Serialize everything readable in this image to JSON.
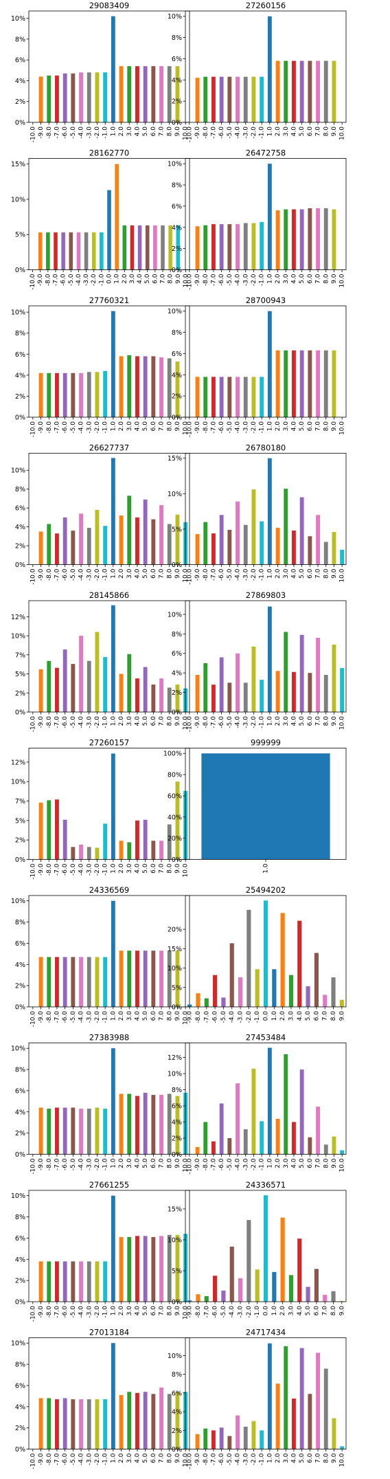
{
  "colors": [
    "#1f77b4",
    "#ff7f0e",
    "#2ca02c",
    "#d62728",
    "#9467bd",
    "#8c564b",
    "#e377c2",
    "#7f7f7f",
    "#bcbd22",
    "#17becf"
  ],
  "chart_data": [
    {
      "type": "bar",
      "title": "29083409",
      "categories": [
        "-10.0",
        "-9.0",
        "-8.0",
        "-7.0",
        "-6.0",
        "-5.0",
        "-4.0",
        "-3.0",
        "-2.0",
        "-1.0",
        "1.0",
        "2.0",
        "3.0",
        "4.0",
        "5.0",
        "6.0",
        "7.0",
        "8.0",
        "9.0",
        "10.0"
      ],
      "values": [
        0,
        4.4,
        4.5,
        4.5,
        4.7,
        4.7,
        4.8,
        4.8,
        4.8,
        4.8,
        10.2,
        5.4,
        5.4,
        5.4,
        5.4,
        5.4,
        5.4,
        5.4,
        5.4,
        0
      ],
      "ylim": [
        0,
        10.7
      ],
      "yticks": [
        0,
        2,
        4,
        6,
        8,
        10
      ],
      "ytick_labels": [
        "0%",
        "2%",
        "4%",
        "6%",
        "8%",
        "10%"
      ]
    },
    {
      "type": "bar",
      "title": "27260156",
      "categories": [
        "-10.0",
        "-9.0",
        "-8.0",
        "-7.0",
        "-6.0",
        "-5.0",
        "-4.0",
        "-3.0",
        "-2.0",
        "-1.0",
        "1.0",
        "2.0",
        "3.0",
        "4.0",
        "5.0",
        "6.0",
        "7.0",
        "8.0",
        "9.0",
        "10.0"
      ],
      "values": [
        0,
        4.2,
        4.3,
        4.3,
        4.3,
        4.3,
        4.3,
        4.3,
        4.3,
        4.3,
        10.0,
        5.8,
        5.8,
        5.8,
        5.8,
        5.8,
        5.8,
        5.8,
        5.8,
        0
      ],
      "ylim": [
        0,
        10.5
      ],
      "yticks": [
        0,
        2,
        4,
        6,
        8,
        10
      ],
      "ytick_labels": [
        "0%",
        "2%",
        "4%",
        "6%",
        "8%",
        "10%"
      ]
    },
    {
      "type": "bar",
      "title": "28162770",
      "categories": [
        "-10.0",
        "-9.0",
        "-8.0",
        "-7.0",
        "-6.0",
        "-5.0",
        "-4.0",
        "-3.0",
        "-2.0",
        "-1.0",
        "0.0",
        "1.0",
        "2.0",
        "3.0",
        "4.0",
        "5.0",
        "6.0",
        "7.0",
        "8.0",
        "9.0",
        "10.0"
      ],
      "values": [
        0,
        5.3,
        5.3,
        5.3,
        5.3,
        5.3,
        5.3,
        5.3,
        5.3,
        5.3,
        11.3,
        15.0,
        6.3,
        6.3,
        6.3,
        6.3,
        6.3,
        6.3,
        6.3,
        6.3,
        0
      ],
      "ylim": [
        0,
        15.8
      ],
      "yticks": [
        0,
        5,
        10,
        15
      ],
      "ytick_labels": [
        "0%",
        "5%",
        "10%",
        "15%"
      ]
    },
    {
      "type": "bar",
      "title": "26472758",
      "categories": [
        "-10.0",
        "-9.0",
        "-8.0",
        "-7.0",
        "-6.0",
        "-5.0",
        "-4.0",
        "-3.0",
        "-2.0",
        "-1.0",
        "1.0",
        "2.0",
        "3.0",
        "4.0",
        "5.0",
        "6.0",
        "7.0",
        "8.0",
        "9.0",
        "10.0"
      ],
      "values": [
        0,
        4.1,
        4.2,
        4.3,
        4.3,
        4.3,
        4.3,
        4.4,
        4.4,
        4.5,
        10.0,
        5.6,
        5.7,
        5.7,
        5.7,
        5.8,
        5.8,
        5.8,
        5.7,
        0
      ],
      "ylim": [
        0,
        10.5
      ],
      "yticks": [
        0,
        2,
        4,
        6,
        8,
        10
      ],
      "ytick_labels": [
        "0%",
        "2%",
        "4%",
        "6%",
        "8%",
        "10%"
      ]
    },
    {
      "type": "bar",
      "title": "27760321",
      "categories": [
        "-10.0",
        "-9.0",
        "-8.0",
        "-7.0",
        "-6.0",
        "-5.0",
        "-4.0",
        "-3.0",
        "-2.0",
        "-1.0",
        "1.0",
        "2.0",
        "3.0",
        "4.0",
        "5.0",
        "6.0",
        "7.0",
        "8.0",
        "9.0",
        "10.0"
      ],
      "values": [
        0,
        4.2,
        4.2,
        4.2,
        4.2,
        4.2,
        4.2,
        4.3,
        4.3,
        4.4,
        10.1,
        5.8,
        5.9,
        5.8,
        5.8,
        5.8,
        5.7,
        5.6,
        5.3,
        0
      ],
      "ylim": [
        0,
        10.6
      ],
      "yticks": [
        0,
        2,
        4,
        6,
        8,
        10
      ],
      "ytick_labels": [
        "0%",
        "2%",
        "4%",
        "6%",
        "8%",
        "10%"
      ]
    },
    {
      "type": "bar",
      "title": "28700943",
      "categories": [
        "-10.0",
        "-9.0",
        "-8.0",
        "-7.0",
        "-6.0",
        "-5.0",
        "-4.0",
        "-3.0",
        "-2.0",
        "-1.0",
        "1.0",
        "2.0",
        "3.0",
        "4.0",
        "5.0",
        "6.0",
        "7.0",
        "8.0",
        "9.0",
        "10.0"
      ],
      "values": [
        0,
        3.8,
        3.8,
        3.8,
        3.8,
        3.8,
        3.8,
        3.8,
        3.8,
        3.8,
        10.0,
        6.3,
        6.3,
        6.3,
        6.3,
        6.3,
        6.3,
        6.3,
        6.3,
        0
      ],
      "ylim": [
        0,
        10.5
      ],
      "yticks": [
        0,
        2,
        4,
        6,
        8,
        10
      ],
      "ytick_labels": [
        "0%",
        "2%",
        "4%",
        "6%",
        "8%",
        "10%"
      ]
    },
    {
      "type": "bar",
      "title": "26627737",
      "categories": [
        "-10.0",
        "-9.0",
        "-8.0",
        "-7.0",
        "-6.0",
        "-5.0",
        "-4.0",
        "-3.0",
        "-2.0",
        "-1.0",
        "1.0",
        "2.0",
        "3.0",
        "4.0",
        "5.0",
        "6.0",
        "7.0",
        "8.0",
        "9.0",
        "10.0"
      ],
      "values": [
        0,
        3.5,
        4.3,
        3.3,
        5.0,
        3.6,
        5.4,
        3.9,
        5.8,
        4.1,
        11.3,
        5.2,
        7.3,
        5.0,
        6.9,
        4.8,
        6.3,
        4.3,
        5.3,
        4.5
      ],
      "ylim": [
        0,
        11.8
      ],
      "yticks": [
        0,
        2,
        4,
        6,
        8,
        10
      ],
      "ytick_labels": [
        "0%",
        "2%",
        "4%",
        "6%",
        "8%",
        "10%"
      ]
    },
    {
      "type": "bar",
      "title": "26780180",
      "categories": [
        "-10.0",
        "-9.0",
        "-8.0",
        "-7.0",
        "-6.0",
        "-5.0",
        "-4.0",
        "-3.0",
        "-2.0",
        "-1.0",
        "1.0",
        "2.0",
        "3.0",
        "4.0",
        "5.0",
        "6.0",
        "7.0",
        "8.0",
        "9.0",
        "10.0"
      ],
      "values": [
        0,
        4.3,
        6.0,
        4.4,
        7.0,
        4.9,
        8.9,
        5.6,
        10.6,
        6.1,
        15.0,
        5.2,
        10.7,
        4.8,
        9.5,
        4.0,
        7.0,
        3.2,
        4.6,
        2.1
      ],
      "ylim": [
        0,
        15.7
      ],
      "yticks": [
        0,
        5,
        10,
        15
      ],
      "ytick_labels": [
        "0%",
        "5%",
        "10%",
        "15%"
      ]
    },
    {
      "type": "bar",
      "title": "28145866",
      "categories": [
        "-10.0",
        "-9.0",
        "-8.0",
        "-7.0",
        "-6.0",
        "-5.0",
        "-4.0",
        "-3.0",
        "-2.0",
        "-1.0",
        "1.0",
        "2.0",
        "3.0",
        "4.0",
        "5.0",
        "6.0",
        "7.0",
        "8.0",
        "9.0",
        "10.0"
      ],
      "values": [
        0,
        5.6,
        6.7,
        5.8,
        8.2,
        6.3,
        10.0,
        6.7,
        10.5,
        7.2,
        14.0,
        5.0,
        7.6,
        4.4,
        5.9,
        3.6,
        4.4,
        3.2,
        3.6,
        3.1
      ],
      "ylim": [
        0,
        14.6
      ],
      "yticks": [
        0,
        2.5,
        5,
        7.5,
        10,
        12.5
      ],
      "ytick_labels": [
        "0%",
        "2%",
        "5%",
        "7%",
        "10%",
        "12%"
      ]
    },
    {
      "type": "bar",
      "title": "27869803",
      "categories": [
        "-10.0",
        "-9.0",
        "-8.0",
        "-7.0",
        "-6.0",
        "-5.0",
        "-4.0",
        "-3.0",
        "-2.0",
        "-1.0",
        "1.0",
        "2.0",
        "3.0",
        "4.0",
        "5.0",
        "6.0",
        "7.0",
        "8.0",
        "9.0",
        "10.0"
      ],
      "values": [
        0,
        3.8,
        5.0,
        2.8,
        5.6,
        3.0,
        6.0,
        3.0,
        6.7,
        3.3,
        10.8,
        4.2,
        8.2,
        4.1,
        7.9,
        4.0,
        7.6,
        3.8,
        6.9,
        4.5
      ],
      "ylim": [
        0,
        11.4
      ],
      "yticks": [
        0,
        2,
        4,
        6,
        8,
        10
      ],
      "ytick_labels": [
        "0%",
        "2%",
        "4%",
        "6%",
        "8%",
        "10%"
      ]
    },
    {
      "type": "bar",
      "title": "27260157",
      "categories": [
        "-10.0",
        "-9.0",
        "-8.0",
        "-7.0",
        "-6.0",
        "-5.0",
        "-4.0",
        "-3.0",
        "-2.0",
        "-1.0",
        "1.0",
        "2.0",
        "3.0",
        "4.0",
        "5.0",
        "6.0",
        "7.0",
        "8.0",
        "9.0",
        "10.0"
      ],
      "values": [
        0,
        7.3,
        7.6,
        7.7,
        5.1,
        1.6,
        1.9,
        1.6,
        1.5,
        4.6,
        13.6,
        2.4,
        2.2,
        5.0,
        5.1,
        2.4,
        2.4,
        4.5,
        10.0,
        8.8
      ],
      "ylim": [
        0,
        14.3
      ],
      "yticks": [
        0,
        2.5,
        5,
        7.5,
        10,
        12.5
      ],
      "ytick_labels": [
        "0%",
        "2%",
        "5%",
        "7%",
        "10%",
        "12%"
      ]
    },
    {
      "type": "bar",
      "title": "999999",
      "categories": [
        "1.0"
      ],
      "values": [
        100
      ],
      "ylim": [
        0,
        105
      ],
      "yticks": [
        0,
        20,
        40,
        60,
        80,
        100
      ],
      "ytick_labels": [
        "0%",
        "20%",
        "40%",
        "60%",
        "80%",
        "100%"
      ]
    },
    {
      "type": "bar",
      "title": "24336569",
      "categories": [
        "-10.0",
        "-9.0",
        "-8.0",
        "-7.0",
        "-6.0",
        "-5.0",
        "-4.0",
        "-3.0",
        "-2.0",
        "-1.0",
        "1.0",
        "2.0",
        "3.0",
        "4.0",
        "5.0",
        "6.0",
        "7.0",
        "8.0",
        "9.0",
        "10.0"
      ],
      "values": [
        0,
        4.7,
        4.7,
        4.7,
        4.7,
        4.7,
        4.7,
        4.7,
        4.7,
        4.7,
        10.0,
        5.3,
        5.3,
        5.3,
        5.3,
        5.3,
        5.3,
        5.3,
        5.3,
        0
      ],
      "ylim": [
        0,
        10.5
      ],
      "yticks": [
        0,
        2,
        4,
        6,
        8,
        10
      ],
      "ytick_labels": [
        "0%",
        "2%",
        "4%",
        "6%",
        "8%",
        "10%"
      ]
    },
    {
      "type": "bar",
      "title": "25494202",
      "categories": [
        "-9.0",
        "-8.0",
        "-7.0",
        "-6.0",
        "-5.0",
        "-4.0",
        "-3.0",
        "-2.0",
        "-1.0",
        "0.0",
        "1.0",
        "2.0",
        "3.0",
        "4.0",
        "5.0",
        "6.0",
        "7.0",
        "8.0",
        "9.0"
      ],
      "values": [
        0.6,
        3.5,
        2.2,
        8.2,
        2.4,
        16.4,
        7.6,
        25.0,
        9.7,
        27.4,
        9.7,
        24.2,
        8.2,
        22.2,
        5.3,
        13.9,
        3.1,
        7.6,
        1.8
      ],
      "ylim": [
        0,
        28.7
      ],
      "yticks": [
        0,
        5,
        10,
        15,
        20
      ],
      "ytick_labels": [
        "0%",
        "5%",
        "10%",
        "15%",
        "20%"
      ]
    },
    {
      "type": "bar",
      "title": "27383988",
      "categories": [
        "-10.0",
        "-9.0",
        "-8.0",
        "-7.0",
        "-6.0",
        "-5.0",
        "-4.0",
        "-3.0",
        "-2.0",
        "-1.0",
        "1.0",
        "2.0",
        "3.0",
        "4.0",
        "5.0",
        "6.0",
        "7.0",
        "8.0",
        "9.0",
        "10.0"
      ],
      "values": [
        0,
        4.4,
        4.3,
        4.4,
        4.4,
        4.4,
        4.3,
        4.3,
        4.4,
        4.3,
        10.0,
        5.7,
        5.7,
        5.5,
        5.8,
        5.6,
        5.6,
        5.7,
        5.5,
        5.8
      ],
      "ylim": [
        0,
        10.5
      ],
      "yticks": [
        0,
        2,
        4,
        6,
        8,
        10
      ],
      "ytick_labels": [
        "0%",
        "2%",
        "4%",
        "6%",
        "8%",
        "10%"
      ]
    },
    {
      "type": "bar",
      "title": "27453484",
      "categories": [
        "-10.0",
        "-9.0",
        "-8.0",
        "-7.0",
        "-6.0",
        "-5.0",
        "-4.0",
        "-3.0",
        "-2.0",
        "-1.0",
        "1.0",
        "2.0",
        "3.0",
        "4.0",
        "5.0",
        "6.0",
        "7.0",
        "8.0",
        "9.0",
        "10.0"
      ],
      "values": [
        0,
        0.9,
        4.0,
        1.6,
        6.3,
        2.0,
        8.8,
        3.1,
        10.6,
        4.1,
        13.2,
        4.4,
        12.4,
        4.0,
        10.5,
        2.1,
        5.9,
        1.2,
        2.2,
        0.5
      ],
      "ylim": [
        0,
        13.8
      ],
      "yticks": [
        0,
        2,
        4,
        6,
        8,
        10,
        12
      ],
      "ytick_labels": [
        "0%",
        "2%",
        "4%",
        "6%",
        "8%",
        "10%",
        "12%"
      ]
    },
    {
      "type": "bar",
      "title": "27661255",
      "categories": [
        "-10.0",
        "-9.0",
        "-8.0",
        "-7.0",
        "-6.0",
        "-5.0",
        "-4.0",
        "-3.0",
        "-2.0",
        "-1.0",
        "1.0",
        "2.0",
        "3.0",
        "4.0",
        "5.0",
        "6.0",
        "7.0",
        "8.0",
        "9.0",
        "10.0"
      ],
      "values": [
        0,
        3.8,
        3.8,
        3.8,
        3.8,
        3.8,
        3.8,
        3.8,
        3.8,
        3.8,
        10.0,
        6.1,
        6.1,
        6.2,
        6.2,
        6.1,
        6.2,
        6.3,
        6.3,
        6.4
      ],
      "ylim": [
        0,
        10.5
      ],
      "yticks": [
        0,
        2,
        4,
        6,
        8,
        10
      ],
      "ytick_labels": [
        "0%",
        "2%",
        "4%",
        "6%",
        "8%",
        "10%"
      ]
    },
    {
      "type": "bar",
      "title": "24336571",
      "categories": [
        "-9.0",
        "-8.0",
        "-7.0",
        "-6.0",
        "-5.0",
        "-4.0",
        "-3.0",
        "-2.0",
        "-1.0",
        "0.0",
        "1.0",
        "2.0",
        "3.0",
        "4.0",
        "5.0",
        "6.0",
        "7.0",
        "8.0",
        "9.0"
      ],
      "values": [
        0.2,
        1.2,
        0.9,
        4.2,
        1.8,
        8.9,
        3.8,
        13.2,
        5.2,
        17.2,
        4.8,
        13.6,
        4.3,
        10.2,
        2.4,
        5.3,
        1.1,
        1.7,
        0.1
      ],
      "ylim": [
        0,
        18.0
      ],
      "yticks": [
        0,
        5,
        10,
        15
      ],
      "ytick_labels": [
        "0%",
        "5%",
        "10%",
        "15%"
      ]
    },
    {
      "type": "bar",
      "title": "27013184",
      "categories": [
        "-10.0",
        "-9.0",
        "-8.0",
        "-7.0",
        "-6.0",
        "-5.0",
        "-4.0",
        "-3.0",
        "-2.0",
        "-1.0",
        "1.0",
        "2.0",
        "3.0",
        "4.0",
        "5.0",
        "6.0",
        "7.0",
        "8.0",
        "9.0",
        "10.0"
      ],
      "values": [
        0,
        4.8,
        4.8,
        4.7,
        4.8,
        4.7,
        4.7,
        4.7,
        4.7,
        4.7,
        10.0,
        5.1,
        5.4,
        5.3,
        5.4,
        5.2,
        5.8,
        5.2,
        5.4,
        5.4
      ],
      "ylim": [
        0,
        10.5
      ],
      "yticks": [
        0,
        2,
        4,
        6,
        8,
        10
      ],
      "ytick_labels": [
        "0%",
        "2%",
        "4%",
        "6%",
        "8%",
        "10%"
      ]
    },
    {
      "type": "bar",
      "title": "24717434",
      "categories": [
        "-10.0",
        "-9.0",
        "-8.0",
        "-7.0",
        "-6.0",
        "-5.0",
        "-4.0",
        "-3.0",
        "-2.0",
        "-1.0",
        "1.0",
        "2.0",
        "3.0",
        "4.0",
        "5.0",
        "6.0",
        "7.0",
        "8.0",
        "9.0",
        "10.0"
      ],
      "values": [
        0,
        1.6,
        2.2,
        2.0,
        2.3,
        1.4,
        3.6,
        2.4,
        3.0,
        2.0,
        11.3,
        7.0,
        11.0,
        5.4,
        10.8,
        5.9,
        10.3,
        8.6,
        3.3,
        0.3
      ],
      "ylim": [
        0,
        11.9
      ],
      "yticks": [
        0,
        2,
        4,
        6,
        8,
        10
      ],
      "ytick_labels": [
        "0%",
        "2%",
        "4%",
        "6%",
        "8%",
        "10%"
      ]
    }
  ]
}
